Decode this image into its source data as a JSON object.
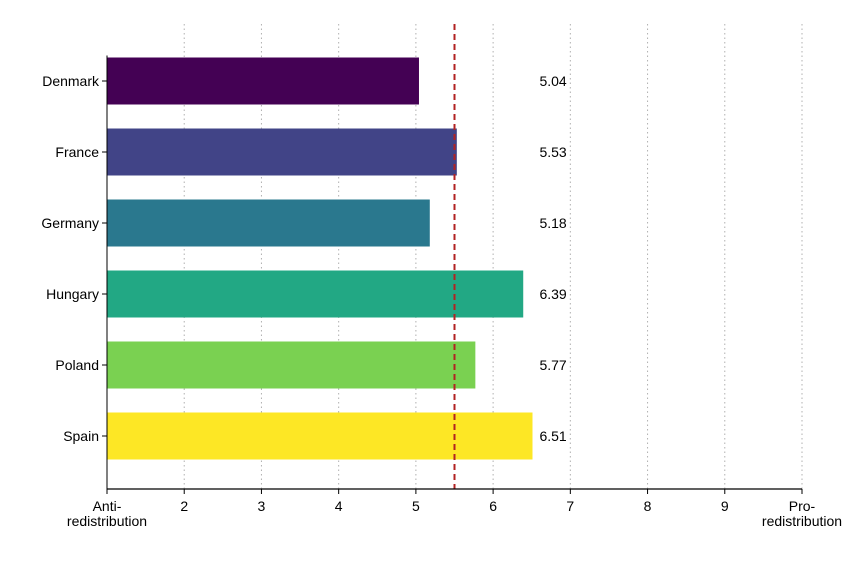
{
  "chart_data": {
    "type": "bar",
    "orientation": "horizontal",
    "categories": [
      "Denmark",
      "France",
      "Germany",
      "Hungary",
      "Poland",
      "Spain"
    ],
    "values": [
      5.04,
      5.53,
      5.18,
      6.39,
      5.77,
      6.51
    ],
    "value_labels": [
      "5.04",
      "5.53",
      "5.18",
      "6.39",
      "5.77",
      "6.51"
    ],
    "colors": [
      "#440154",
      "#414487",
      "#2a788e",
      "#22a884",
      "#7ad151",
      "#fde725"
    ],
    "xlim": [
      1,
      10
    ],
    "x_ticks": [
      {
        "value": 1,
        "lines": [
          "Anti-",
          "redistribution"
        ]
      },
      {
        "value": 2,
        "lines": [
          "2"
        ]
      },
      {
        "value": 3,
        "lines": [
          "3"
        ]
      },
      {
        "value": 4,
        "lines": [
          "4"
        ]
      },
      {
        "value": 5,
        "lines": [
          "5"
        ]
      },
      {
        "value": 6,
        "lines": [
          "6"
        ]
      },
      {
        "value": 7,
        "lines": [
          "7"
        ]
      },
      {
        "value": 8,
        "lines": [
          "8"
        ]
      },
      {
        "value": 9,
        "lines": [
          "9"
        ]
      },
      {
        "value": 10,
        "lines": [
          "Pro-",
          "redistribution"
        ]
      }
    ],
    "grid": {
      "vertical": true,
      "style": "dotted",
      "color": "#b0b0b0"
    },
    "reference_line": {
      "value": 5.5,
      "style": "dashed",
      "color": "#b22222"
    },
    "value_label_position": 6.6,
    "title": "",
    "xlabel": "",
    "ylabel": ""
  }
}
